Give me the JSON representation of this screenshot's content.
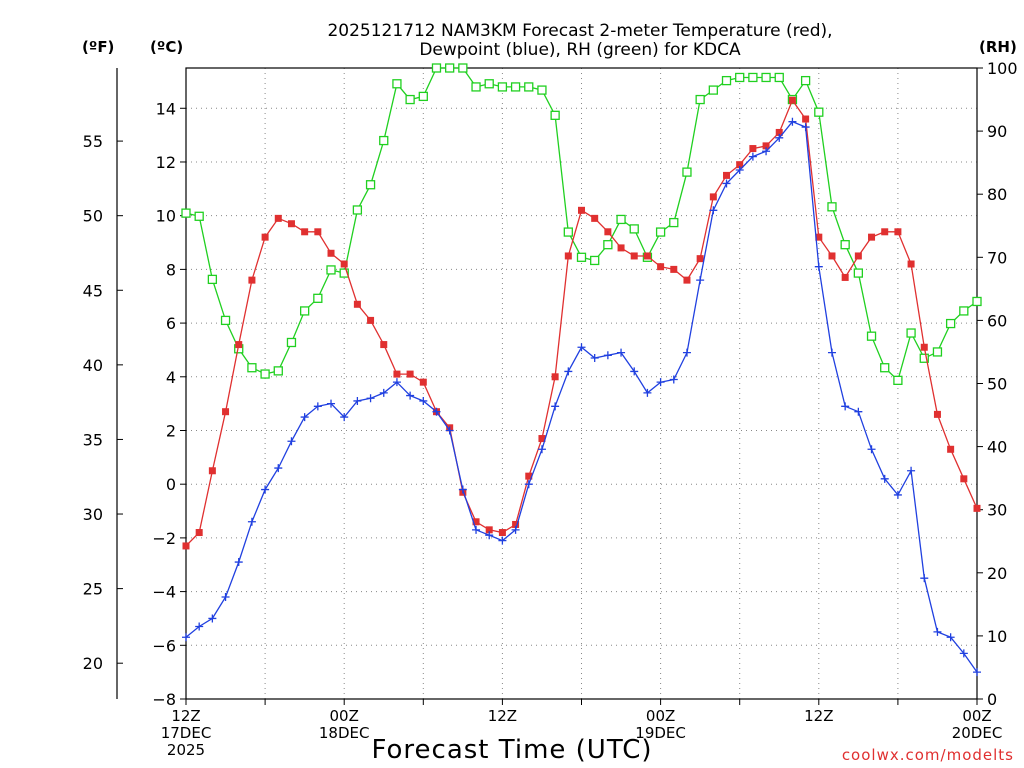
{
  "chart_data": {
    "type": "line",
    "title_line1": "2025121712 NAM3KM Forecast 2-meter Temperature (red),",
    "title_line2": "Dewpoint (blue), RH (green) for KDCA",
    "left_unit_f": "(ºF)",
    "left_unit_c": "(ºC)",
    "right_unit": "(RH)",
    "xlabel": "Forecast Time (UTC)",
    "credit": "coolwx.com/modelts",
    "xlim": [
      0,
      60
    ],
    "ylim_c": [
      -8,
      15.5
    ],
    "ylim_rh": [
      0,
      100
    ],
    "ylim_f": [
      17.6,
      59.9
    ],
    "c_ticks": [
      "−8",
      "−6",
      "−4",
      "−2",
      "0",
      "2",
      "4",
      "6",
      "8",
      "10",
      "12",
      "14"
    ],
    "c_tick_values": [
      -8,
      -6,
      -4,
      -2,
      0,
      2,
      4,
      6,
      8,
      10,
      12,
      14
    ],
    "f_ticks": [
      "20",
      "25",
      "30",
      "35",
      "40",
      "45",
      "50",
      "55"
    ],
    "f_tick_values": [
      20,
      25,
      30,
      35,
      40,
      45,
      50,
      55
    ],
    "rh_ticks": [
      "0",
      "10",
      "20",
      "30",
      "40",
      "50",
      "60",
      "70",
      "80",
      "90",
      "100"
    ],
    "rh_tick_values": [
      0,
      10,
      20,
      30,
      40,
      50,
      60,
      70,
      80,
      90,
      100
    ],
    "x_labels": [
      {
        "hour": 0,
        "line1": "12Z",
        "line2": "17DEC",
        "line3": "2025"
      },
      {
        "hour": 12,
        "line1": "00Z",
        "line2": "18DEC",
        "line3": ""
      },
      {
        "hour": 24,
        "line1": "12Z",
        "line2": "",
        "line3": ""
      },
      {
        "hour": 36,
        "line1": "00Z",
        "line2": "19DEC",
        "line3": ""
      },
      {
        "hour": 48,
        "line1": "12Z",
        "line2": "",
        "line3": ""
      },
      {
        "hour": 60,
        "line1": "00Z",
        "line2": "20DEC",
        "line3": ""
      }
    ],
    "grid": true,
    "series": [
      {
        "name": "Temperature",
        "axis": "C",
        "color": "#e03030",
        "marker": "filled-square",
        "x": [
          0,
          1,
          2,
          3,
          4,
          5,
          6,
          7,
          8,
          9,
          10,
          11,
          12,
          13,
          14,
          15,
          16,
          17,
          18,
          19,
          20,
          21,
          22,
          23,
          24,
          25,
          26,
          27,
          28,
          29,
          30,
          31,
          32,
          33,
          34,
          35,
          36,
          37,
          38,
          39,
          40,
          41,
          42,
          43,
          44,
          45,
          46,
          47,
          48,
          49,
          50,
          51,
          52,
          53,
          54,
          55,
          56,
          57,
          58,
          59,
          60
        ],
        "values": [
          -2.3,
          -1.8,
          0.5,
          2.7,
          5.2,
          7.6,
          9.2,
          9.9,
          9.7,
          9.4,
          9.4,
          8.6,
          8.2,
          6.7,
          6.1,
          5.2,
          4.1,
          4.1,
          3.8,
          2.7,
          2.1,
          -0.3,
          -1.4,
          -1.7,
          -1.8,
          -1.5,
          0.3,
          1.7,
          4.0,
          8.5,
          10.2,
          9.9,
          9.4,
          8.8,
          8.5,
          8.5,
          8.1,
          8.0,
          7.6,
          8.4,
          10.7,
          11.5,
          11.9,
          12.5,
          12.6,
          13.1,
          14.3,
          13.6,
          9.2,
          8.5,
          7.7,
          8.5,
          9.2,
          9.4,
          9.4,
          8.2,
          5.1,
          2.6,
          1.3,
          0.2,
          -0.9
        ]
      },
      {
        "name": "Dewpoint",
        "axis": "C",
        "color": "#2040e0",
        "marker": "plus",
        "x": [
          0,
          1,
          2,
          3,
          4,
          5,
          6,
          7,
          8,
          9,
          10,
          11,
          12,
          13,
          14,
          15,
          16,
          17,
          18,
          19,
          20,
          21,
          22,
          23,
          24,
          25,
          26,
          27,
          28,
          29,
          30,
          31,
          32,
          33,
          34,
          35,
          36,
          37,
          38,
          39,
          40,
          41,
          42,
          43,
          44,
          45,
          46,
          47,
          48,
          49,
          50,
          51,
          52,
          53,
          54,
          55,
          56,
          57,
          58,
          59,
          60
        ],
        "values": [
          -5.7,
          -5.3,
          -5.0,
          -4.2,
          -2.9,
          -1.4,
          -0.2,
          0.6,
          1.6,
          2.5,
          2.9,
          3.0,
          2.5,
          3.1,
          3.2,
          3.4,
          3.8,
          3.3,
          3.1,
          2.7,
          2.0,
          -0.2,
          -1.7,
          -1.9,
          -2.1,
          -1.7,
          0,
          1.3,
          2.9,
          4.2,
          5.1,
          4.7,
          4.8,
          4.9,
          4.2,
          3.4,
          3.8,
          3.9,
          4.9,
          7.6,
          10.2,
          11.2,
          11.7,
          12.2,
          12.4,
          12.9,
          13.5,
          13.3,
          8.1,
          4.9,
          2.9,
          2.7,
          1.3,
          0.2,
          -0.4,
          0.5,
          -3.5,
          -5.5,
          -5.7,
          -6.3,
          -7.0
        ]
      },
      {
        "name": "RH",
        "axis": "RH",
        "color": "#20d020",
        "marker": "open-square",
        "x": [
          0,
          1,
          2,
          3,
          4,
          5,
          6,
          7,
          8,
          9,
          10,
          11,
          12,
          13,
          14,
          15,
          16,
          17,
          18,
          19,
          20,
          21,
          22,
          23,
          24,
          25,
          26,
          27,
          28,
          29,
          30,
          31,
          32,
          33,
          34,
          35,
          36,
          37,
          38,
          39,
          40,
          41,
          42,
          43,
          44,
          45,
          46,
          47,
          48,
          49,
          50,
          51,
          52,
          53,
          54,
          55,
          56,
          57,
          58,
          59,
          60
        ],
        "values": [
          77,
          76.5,
          66.5,
          60,
          55.5,
          52.5,
          51.5,
          52,
          56.5,
          61.5,
          63.5,
          68,
          67.5,
          77.5,
          81.5,
          88.5,
          97.5,
          95,
          95.5,
          100,
          100,
          100,
          97,
          97.5,
          97,
          97,
          97,
          96.5,
          92.5,
          74,
          70,
          69.5,
          72,
          76,
          74.5,
          70,
          74,
          75.5,
          83.5,
          95,
          96.5,
          98,
          98.5,
          98.5,
          98.5,
          98.5,
          95,
          98,
          93,
          78,
          72,
          67.5,
          57.5,
          52.5,
          50.5,
          58,
          54,
          55,
          59.5,
          61.5,
          63
        ]
      }
    ]
  }
}
